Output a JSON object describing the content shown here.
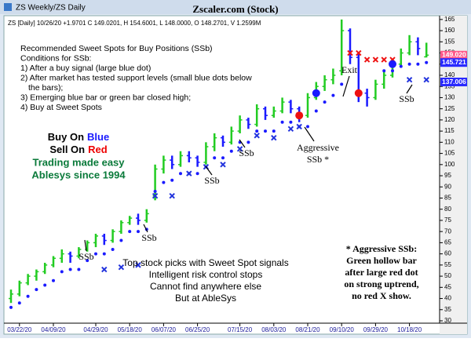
{
  "window_title": "ZS Weekly/ZS Daily",
  "chart_data": {
    "type": "ohlc",
    "title": "Zscaler.com (Stock)",
    "info": "ZS [Daily] 10/26/20 +1.9701 C 149.0201, H 154.6001, L 148.0000, O 148.2701, V 1.2599M",
    "categories": [
      null,
      "03/22/20",
      null,
      null,
      null,
      "04/09/20",
      null,
      null,
      null,
      null,
      "04/29/20",
      null,
      null,
      null,
      "05/18/20",
      null,
      null,
      null,
      "06/07/20",
      null,
      null,
      null,
      "06/25/20",
      null,
      null,
      null,
      null,
      "07/15/20",
      null,
      null,
      null,
      "08/03/20",
      null,
      null,
      null,
      "08/21/20",
      null,
      null,
      null,
      "09/10/20",
      null,
      null,
      null,
      "09/29/20",
      null,
      null,
      null,
      "10/18/20",
      null,
      null
    ],
    "open": [
      40,
      42,
      47,
      50,
      52,
      55,
      58,
      60,
      59,
      62,
      65,
      68,
      66,
      70,
      74,
      76,
      75,
      86,
      98,
      102,
      100,
      104,
      103,
      101,
      108,
      112,
      110,
      115,
      120,
      118,
      125,
      122,
      124,
      128,
      125,
      122,
      130,
      135,
      138,
      142,
      160,
      148,
      132,
      130,
      136,
      140,
      145,
      150,
      155,
      148.27
    ],
    "high": [
      44,
      48,
      51,
      53,
      56,
      59,
      62,
      61,
      63,
      66,
      69,
      69,
      71,
      75,
      77,
      78,
      80,
      100,
      104,
      104,
      106,
      106,
      104,
      110,
      114,
      113,
      117,
      122,
      121,
      127,
      126,
      126,
      130,
      129,
      126,
      132,
      137,
      140,
      143,
      165,
      161,
      150,
      134,
      138,
      142,
      147,
      152,
      158,
      157,
      154.6
    ],
    "low": [
      38,
      41,
      46,
      48,
      51,
      54,
      56,
      56,
      58,
      61,
      63,
      64,
      65,
      69,
      73,
      73,
      74,
      84,
      96,
      98,
      99,
      101,
      99,
      100,
      106,
      108,
      109,
      114,
      116,
      117,
      120,
      121,
      123,
      123,
      119,
      121,
      129,
      133,
      136,
      140,
      145,
      128,
      126,
      129,
      134,
      139,
      144,
      149,
      149,
      148
    ],
    "close": [
      42,
      47,
      50,
      52,
      55,
      58,
      60,
      59,
      62,
      65,
      68,
      66,
      70,
      74,
      76,
      75,
      78,
      98,
      102,
      100,
      104,
      103,
      101,
      108,
      112,
      110,
      115,
      120,
      118,
      125,
      122,
      124,
      128,
      125,
      122,
      130,
      135,
      138,
      140,
      160,
      148,
      132,
      130,
      136,
      140,
      145,
      150,
      155,
      152,
      149.02
    ],
    "up_color": "#22cc22",
    "down_color": "#1a1aff",
    "support": [
      36,
      38,
      41,
      44,
      46,
      48,
      52,
      53,
      53,
      57,
      60,
      60,
      62,
      66,
      70,
      70,
      71,
      88,
      92,
      93,
      96,
      96,
      96,
      99,
      103,
      103,
      106,
      110,
      110,
      115,
      115,
      115,
      119,
      119,
      117,
      117,
      124,
      128,
      131,
      136,
      null,
      null,
      null,
      null,
      142,
      142,
      144,
      145,
      145,
      145.7
    ],
    "support_color": "#1a1aff",
    "red_x": [
      null,
      null,
      null,
      null,
      null,
      null,
      null,
      null,
      null,
      null,
      null,
      null,
      null,
      null,
      null,
      null,
      null,
      null,
      null,
      null,
      null,
      null,
      null,
      null,
      null,
      null,
      null,
      null,
      null,
      null,
      null,
      null,
      null,
      null,
      null,
      null,
      null,
      null,
      null,
      null,
      150,
      150,
      147,
      147,
      147,
      147,
      null,
      null,
      null,
      null
    ],
    "red_x_color": "#ee1111",
    "blue_x": [
      null,
      null,
      null,
      null,
      null,
      null,
      null,
      null,
      null,
      null,
      null,
      53,
      null,
      54,
      null,
      55,
      null,
      86,
      null,
      86,
      null,
      96,
      null,
      99,
      null,
      100,
      null,
      107,
      null,
      113,
      null,
      112,
      null,
      116,
      117,
      null,
      null,
      null,
      null,
      null,
      null,
      null,
      null,
      null,
      null,
      null,
      null,
      138,
      null,
      138
    ],
    "blue_x_color": "#2233dd",
    "buy_signals": [
      null,
      null,
      null,
      null,
      null,
      null,
      null,
      null,
      null,
      null,
      null,
      null,
      null,
      null,
      null,
      null,
      null,
      null,
      null,
      null,
      null,
      null,
      null,
      null,
      null,
      null,
      null,
      null,
      null,
      null,
      null,
      null,
      null,
      null,
      null,
      null,
      132,
      null,
      null,
      null,
      null,
      null,
      null,
      null,
      null,
      145,
      null,
      null,
      null,
      null
    ],
    "sell_signals": [
      null,
      null,
      null,
      null,
      null,
      null,
      null,
      null,
      null,
      null,
      null,
      null,
      null,
      null,
      null,
      null,
      null,
      null,
      null,
      null,
      null,
      null,
      null,
      null,
      null,
      null,
      null,
      null,
      null,
      null,
      null,
      null,
      null,
      null,
      122,
      null,
      null,
      null,
      null,
      null,
      null,
      132,
      null,
      null,
      null,
      null,
      null,
      null,
      null,
      null
    ],
    "ylim": [
      30,
      166
    ],
    "yticks": [
      30,
      35,
      40,
      45,
      50,
      55,
      60,
      65,
      70,
      75,
      80,
      85,
      90,
      95,
      100,
      105,
      110,
      115,
      120,
      125,
      130,
      135,
      140,
      145,
      150,
      155,
      160,
      165
    ],
    "grid": false,
    "price_labels": [
      {
        "value": 149.02,
        "label": "149.020",
        "color": "#ff5a8a"
      },
      {
        "value": 145.721,
        "label": "145.721",
        "color": "#2a2aff"
      },
      {
        "value": 137.006,
        "label": "137.006",
        "color": "#2a2aff"
      }
    ],
    "annotations": {
      "conditions": [
        "Recommended Sweet Spots for Buy Positions (SSb)",
        "Conditions for SSb:",
        "1) After a buy signal (large blue dot)",
        "2) After market has tested support levels (small blue dots below",
        "the bars);",
        "3) Emerging blue bar or green bar closed high;",
        "4) Buy at Sweet Spots"
      ],
      "slogan": {
        "buy": "Buy On",
        "buy_word": "Blue",
        "sell": "Sell On",
        "sell_word": "Red",
        "line3": "Trading made easy",
        "line4": "Ablesys since 1994"
      },
      "center": [
        "Top stock picks with Sweet Spot signals",
        "Intelligent risk control stops",
        "Cannot find anywhere else",
        "But at AbleSys"
      ],
      "right": [
        "* Aggressive SSb:",
        "Green hollow bar",
        "after large red dot",
        "on strong uptrend,",
        "no red X show."
      ],
      "ssb": [
        "SSb",
        "SSb",
        "SSb",
        "SSb",
        "SSb"
      ],
      "exit": "Exit",
      "aggressive": [
        "Aggressive",
        "SSb *"
      ]
    }
  }
}
